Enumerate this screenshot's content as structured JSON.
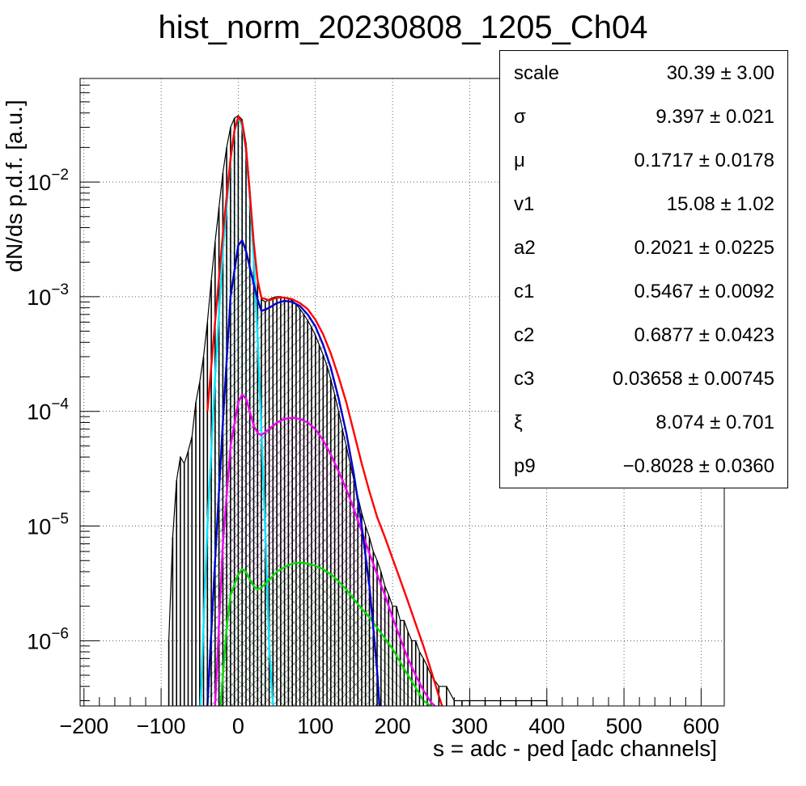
{
  "chart_data": {
    "type": "line",
    "title": "hist_norm_20230808_1205_Ch04",
    "xlabel": "s = adc - ped [adc channels]",
    "ylabel": "dN/ds p.d.f. [a.u.]",
    "xlim": [
      -205,
      630
    ],
    "ylim": [
      2.7e-07,
      0.08
    ],
    "yscale": "log",
    "grid": true,
    "x_ticks": [
      {
        "value": -200,
        "label": "−200"
      },
      {
        "value": -100,
        "label": "−100"
      },
      {
        "value": 0,
        "label": "0"
      },
      {
        "value": 100,
        "label": "100"
      },
      {
        "value": 200,
        "label": "200"
      },
      {
        "value": 300,
        "label": "300"
      },
      {
        "value": 400,
        "label": "400"
      },
      {
        "value": 500,
        "label": "500"
      },
      {
        "value": 600,
        "label": "600"
      }
    ],
    "y_ticks": [
      {
        "value": 0.01,
        "mantissa": "10",
        "exponent": "−2"
      },
      {
        "value": 0.001,
        "mantissa": "10",
        "exponent": "−3"
      },
      {
        "value": 0.0001,
        "mantissa": "10",
        "exponent": "−4"
      },
      {
        "value": 1e-05,
        "mantissa": "10",
        "exponent": "−5"
      },
      {
        "value": 1e-06,
        "mantissa": "10",
        "exponent": "−6"
      }
    ],
    "series": [
      {
        "color": "#000000",
        "kind": "histogram",
        "x": [
          -90,
          -85,
          -80,
          -75,
          -70,
          -65,
          -60,
          -55,
          -50,
          -45,
          -40,
          -35,
          -30,
          -25,
          -20,
          -15,
          -10,
          -5,
          0,
          5,
          10,
          15,
          20,
          25,
          30,
          35,
          40,
          45,
          50,
          55,
          60,
          65,
          70,
          75,
          80,
          85,
          90,
          95,
          100,
          105,
          110,
          115,
          120,
          125,
          130,
          135,
          140,
          145,
          150,
          155,
          160,
          165,
          170,
          175,
          180,
          185,
          190,
          195,
          200,
          205,
          210,
          215,
          220,
          225,
          230,
          235,
          240,
          245,
          250,
          260,
          270,
          280,
          290,
          300,
          320,
          340,
          360,
          380,
          400
        ],
        "y": [
          1e-06,
          8e-06,
          2.5e-05,
          4e-05,
          3.5e-05,
          4.5e-05,
          6e-05,
          0.00012,
          0.00018,
          0.0003,
          0.0006,
          0.0014,
          0.003,
          0.006,
          0.012,
          0.02,
          0.03,
          0.036,
          0.038,
          0.035,
          0.022,
          0.009,
          0.0025,
          0.0014,
          0.00095,
          0.0009,
          0.00095,
          0.00098,
          0.001,
          0.001,
          0.00098,
          0.00096,
          0.00092,
          0.00086,
          0.00078,
          0.0007,
          0.00062,
          0.00054,
          0.00046,
          0.00038,
          0.00031,
          0.00025,
          0.00019,
          0.00014,
          0.0001,
          7e-05,
          5e-05,
          3.5e-05,
          2.5e-05,
          1.8e-05,
          1.3e-05,
          1e-05,
          8e-06,
          6e-06,
          5e-06,
          4e-06,
          3e-06,
          2.5e-06,
          2e-06,
          2e-06,
          1.5e-06,
          1.5e-06,
          1.2e-06,
          1e-06,
          1e-06,
          8e-07,
          7e-07,
          6e-07,
          5e-07,
          4e-07,
          4e-07,
          3e-07,
          3e-07,
          3e-07,
          3e-07,
          3e-07,
          3e-07,
          3e-07,
          3e-07
        ]
      },
      {
        "color": "#ff0000",
        "kind": "line",
        "x": [
          -40,
          -30,
          -20,
          -10,
          -5,
          0,
          5,
          10,
          15,
          20,
          25,
          30,
          40,
          50,
          60,
          70,
          80,
          90,
          100,
          110,
          120,
          130,
          140,
          150,
          160,
          170,
          180,
          190,
          200,
          210,
          220,
          230,
          240,
          250,
          260,
          265
        ],
        "y": [
          0.0001,
          0.0006,
          0.0035,
          0.016,
          0.028,
          0.037,
          0.033,
          0.02,
          0.008,
          0.003,
          0.0014,
          0.00098,
          0.00093,
          0.00098,
          0.00098,
          0.00095,
          0.00088,
          0.00078,
          0.00063,
          0.00047,
          0.00032,
          0.0002,
          0.00012,
          6.5e-05,
          3.5e-05,
          2e-05,
          1.2e-05,
          8e-06,
          5.2e-06,
          3.4e-06,
          2.2e-06,
          1.4e-06,
          9e-07,
          5.5e-07,
          3.3e-07,
          2.6e-07
        ]
      },
      {
        "color": "#00e5ff",
        "kind": "line",
        "fill": "#00e5ff",
        "x": [
          -49,
          -40,
          -30,
          -20,
          -10,
          -5,
          0,
          5,
          10,
          15,
          20,
          25,
          30,
          35,
          40,
          45
        ],
        "y": [
          2.7e-07,
          1e-05,
          0.0002,
          0.0025,
          0.016,
          0.028,
          0.036,
          0.031,
          0.019,
          0.0075,
          0.0022,
          0.00045,
          7e-05,
          9e-06,
          9e-07,
          2.7e-07
        ]
      },
      {
        "color": "#0000cc",
        "kind": "line",
        "fill": "#000000",
        "x": [
          -40,
          -30,
          -20,
          -10,
          0,
          5,
          10,
          20,
          25,
          30,
          40,
          50,
          60,
          70,
          80,
          90,
          100,
          110,
          120,
          130,
          140,
          150,
          160,
          170,
          175,
          180,
          183
        ],
        "y": [
          2.7e-07,
          5e-06,
          8e-05,
          0.001,
          0.0028,
          0.0031,
          0.0025,
          0.0013,
          0.00095,
          0.00075,
          0.0008,
          0.00088,
          0.00092,
          0.0009,
          0.00083,
          0.0007,
          0.00055,
          0.00038,
          0.00024,
          0.00013,
          6.5e-05,
          2.8e-05,
          1e-05,
          3e-06,
          1.3e-06,
          5.5e-07,
          2.7e-07
        ]
      },
      {
        "color": "#ee00ee",
        "kind": "line",
        "fill": "#ee00ee",
        "x": [
          -30,
          -20,
          -10,
          0,
          5,
          10,
          15,
          20,
          25,
          30,
          40,
          50,
          60,
          70,
          80,
          90,
          100,
          110,
          120,
          130,
          140,
          150,
          160,
          170,
          180,
          190,
          200,
          210,
          220,
          230,
          240,
          250,
          255
        ],
        "y": [
          2.7e-07,
          7e-06,
          5e-05,
          0.00012,
          0.00014,
          0.00013,
          0.0001,
          7.5e-05,
          6.5e-05,
          6.2e-05,
          7e-05,
          8e-05,
          8.6e-05,
          8.8e-05,
          8.6e-05,
          8e-05,
          7e-05,
          5.6e-05,
          4.2e-05,
          3e-05,
          2.1e-05,
          1.4e-05,
          9e-06,
          5.8e-06,
          3.8e-06,
          2.5e-06,
          1.6e-06,
          1.05e-06,
          7e-07,
          5e-07,
          3.7e-07,
          2.9e-07,
          2.7e-07
        ]
      },
      {
        "color": "#00dd00",
        "kind": "line",
        "fill": "#00dd00",
        "x": [
          -23,
          -15,
          -10,
          0,
          5,
          10,
          15,
          20,
          25,
          30,
          40,
          50,
          60,
          70,
          80,
          90,
          100,
          110,
          120,
          130,
          140,
          150,
          160,
          170,
          180,
          190,
          200,
          210,
          220,
          230,
          240,
          250
        ],
        "y": [
          2.7e-07,
          1.3e-06,
          2.5e-06,
          3.8e-06,
          4.2e-06,
          4e-06,
          3.4e-06,
          3e-06,
          2.8e-06,
          2.9e-06,
          3.4e-06,
          4e-06,
          4.4e-06,
          4.7e-06,
          4.8e-06,
          4.7e-06,
          4.5e-06,
          4.2e-06,
          3.8e-06,
          3.3e-06,
          2.8e-06,
          2.3e-06,
          1.9e-06,
          1.6e-06,
          1.3e-06,
          1.05e-06,
          8.5e-07,
          6.5e-07,
          5e-07,
          3.9e-07,
          3e-07,
          2.7e-07
        ]
      }
    ],
    "stats": [
      {
        "name": "scale",
        "value": "30.39 ± 3.00"
      },
      {
        "name": "σ",
        "value": "9.397 ± 0.021"
      },
      {
        "name": "μ",
        "value": "0.1717 ± 0.0178"
      },
      {
        "name": "v1",
        "value": "15.08 ± 1.02"
      },
      {
        "name": "a2",
        "value": "0.2021 ± 0.0225"
      },
      {
        "name": "c1",
        "value": "0.5467 ± 0.0092"
      },
      {
        "name": "c2",
        "value": "0.6877 ± 0.0423"
      },
      {
        "name": "c3",
        "value": "0.03658 ± 0.00745"
      },
      {
        "name": "ξ",
        "value": "8.074 ± 0.701"
      },
      {
        "name": "p9",
        "value": "−0.8028 ± 0.0360"
      }
    ]
  }
}
